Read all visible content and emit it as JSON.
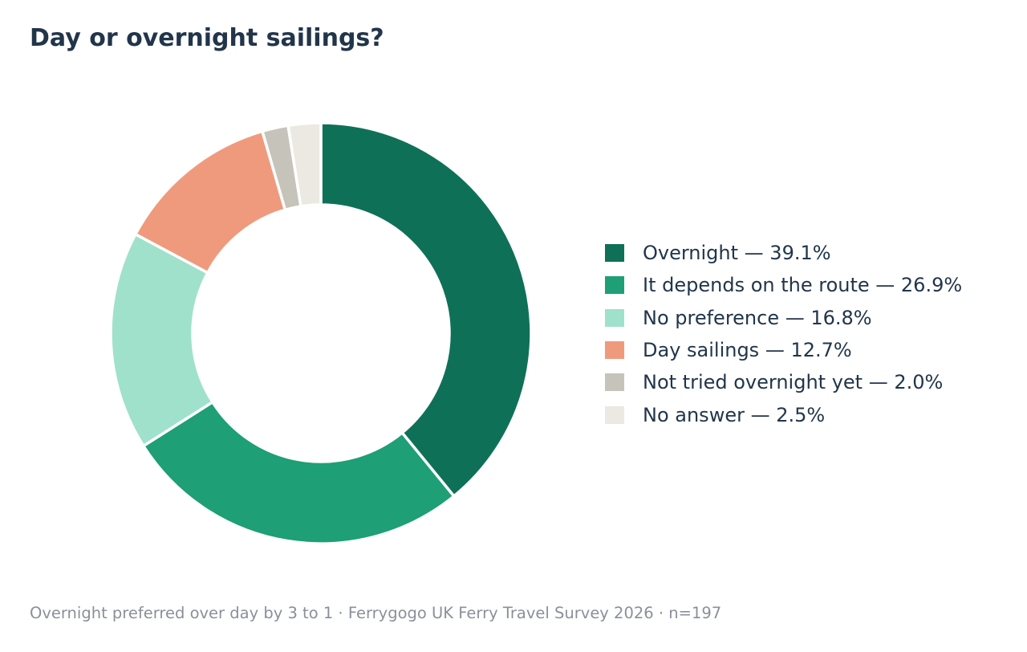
{
  "chart_data": {
    "type": "pie",
    "variant": "donut",
    "title": "Day or overnight sailings?",
    "legend_position": "right",
    "slices": [
      {
        "label": "Overnight — 39.1%",
        "value": 39.1,
        "color": "#0f7058"
      },
      {
        "label": "It depends on the route — 26.9%",
        "value": 26.9,
        "color": "#1e9f76"
      },
      {
        "label": "No preference — 16.8%",
        "value": 16.8,
        "color": "#a0e1cb"
      },
      {
        "label": "Day sailings — 12.7%",
        "value": 12.7,
        "color": "#f09a7d"
      },
      {
        "label": "Not tried overnight yet — 2.0%",
        "value": 2.0,
        "color": "#c6c3bb"
      },
      {
        "label": "No answer — 2.5%",
        "value": 2.5,
        "color": "#ece9e2"
      }
    ]
  },
  "footnote": "Overnight preferred over day by 3 to 1  ·  Ferrygogo UK Ferry Travel Survey 2026  ·  n=197"
}
